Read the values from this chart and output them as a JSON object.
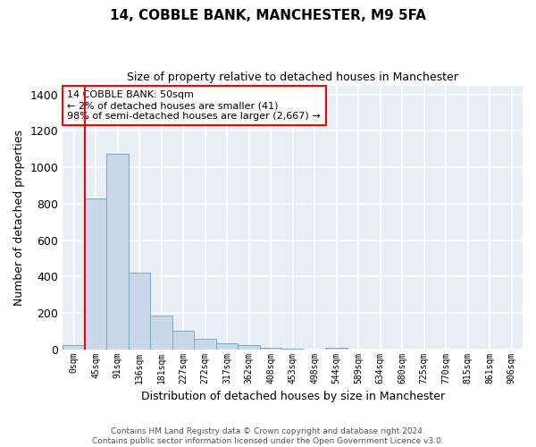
{
  "title": "14, COBBLE BANK, MANCHESTER, M9 5FA",
  "subtitle": "Size of property relative to detached houses in Manchester",
  "xlabel": "Distribution of detached houses by size in Manchester",
  "ylabel": "Number of detached properties",
  "bar_color": "#c8d8e8",
  "bar_edge_color": "#7aaabb",
  "bg_color": "#e8eef6",
  "grid_color": "#ffffff",
  "categories": [
    "0sqm",
    "45sqm",
    "91sqm",
    "136sqm",
    "181sqm",
    "227sqm",
    "272sqm",
    "317sqm",
    "362sqm",
    "408sqm",
    "453sqm",
    "498sqm",
    "544sqm",
    "589sqm",
    "634sqm",
    "680sqm",
    "725sqm",
    "770sqm",
    "815sqm",
    "861sqm",
    "906sqm"
  ],
  "values": [
    25,
    830,
    1075,
    420,
    185,
    100,
    58,
    35,
    22,
    8,
    4,
    0,
    10,
    0,
    0,
    0,
    0,
    0,
    0,
    0,
    0
  ],
  "ylim": [
    0,
    1450
  ],
  "yticks": [
    0,
    200,
    400,
    600,
    800,
    1000,
    1200,
    1400
  ],
  "annotation_text": "14 COBBLE BANK: 50sqm\n← 2% of detached houses are smaller (41)\n98% of semi-detached houses are larger (2,667) →",
  "vline_x_idx": 1,
  "footer_line1": "Contains HM Land Registry data © Crown copyright and database right 2024.",
  "footer_line2": "Contains public sector information licensed under the Open Government Licence v3.0."
}
